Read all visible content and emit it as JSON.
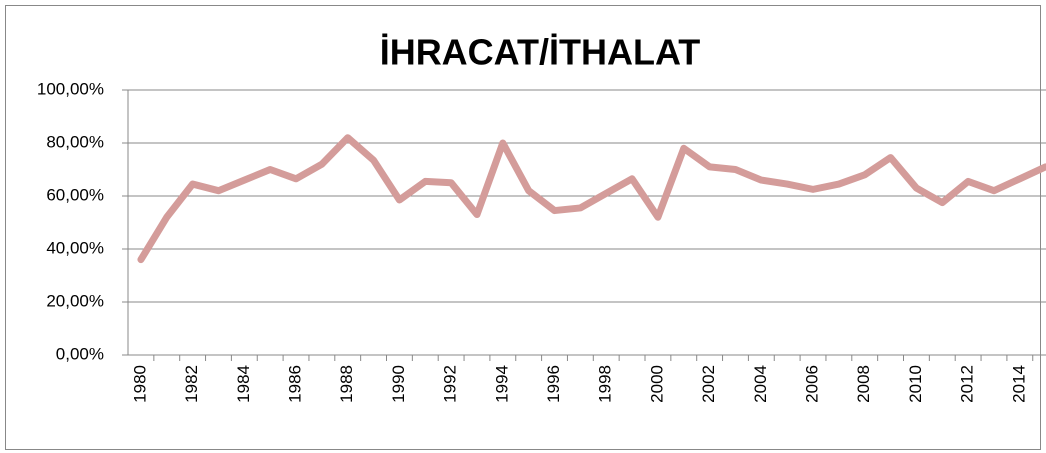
{
  "chart_data": {
    "type": "line",
    "title": "İHRACAT/İTHALAT",
    "categories": [
      "1980",
      null,
      "1982",
      null,
      "1984",
      null,
      "1986",
      null,
      "1988",
      null,
      "1990",
      null,
      "1992",
      null,
      "1994",
      null,
      "1996",
      null,
      "1998",
      null,
      "2000",
      null,
      "2002",
      null,
      "2004",
      null,
      "2006",
      null,
      "2008",
      null,
      "2010",
      null,
      "2012",
      null,
      "2014",
      null
    ],
    "values": [
      36,
      52,
      64.5,
      62,
      66,
      70,
      66.5,
      72,
      82,
      73.5,
      58.5,
      65.5,
      65,
      53,
      80,
      62,
      54.5,
      55.5,
      61,
      66.5,
      52,
      78,
      71,
      70,
      66,
      64.5,
      62.5,
      64.5,
      68,
      74.5,
      63,
      57.5,
      65.5,
      62,
      66.5,
      71
    ],
    "color": "#d49c9a",
    "ylim": [
      0,
      100
    ],
    "yticks": [
      {
        "value": 0,
        "label": "0,00%"
      },
      {
        "value": 20,
        "label": "20,00%"
      },
      {
        "value": 40,
        "label": "40,00%"
      },
      {
        "value": 60,
        "label": "60,00%"
      },
      {
        "value": 80,
        "label": "80,00%"
      },
      {
        "value": 100,
        "label": "100,00%"
      }
    ],
    "grid": true
  }
}
